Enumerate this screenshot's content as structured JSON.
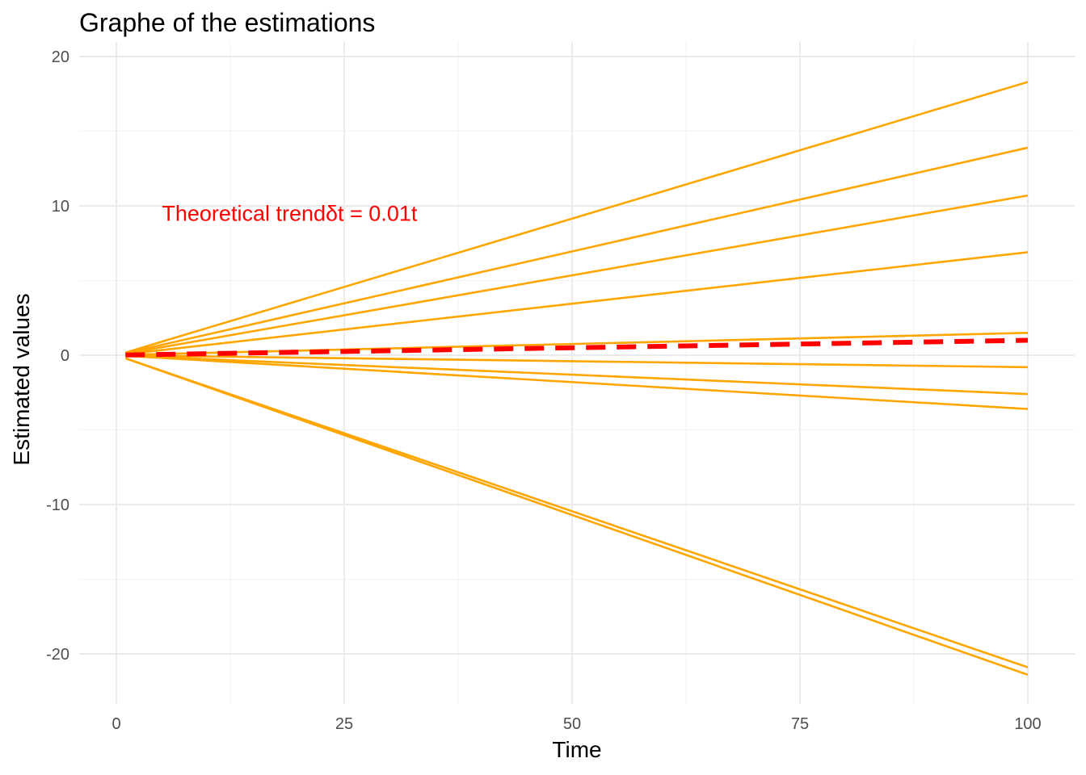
{
  "chart_data": {
    "type": "line",
    "title": "Graphe of the estimations",
    "xlabel": "Time",
    "ylabel": "Estimated values",
    "xlim": [
      0,
      100
    ],
    "ylim": [
      -20,
      20
    ],
    "xticks": [
      0,
      25,
      50,
      75,
      100
    ],
    "yticks": [
      -20,
      -10,
      0,
      10,
      20
    ],
    "grid": true,
    "series": [
      {
        "color": "#FFA500",
        "x": [
          1,
          100
        ],
        "values": [
          0.18,
          18.3
        ]
      },
      {
        "color": "#FFA500",
        "x": [
          1,
          100
        ],
        "values": [
          0.14,
          13.9
        ]
      },
      {
        "color": "#FFA500",
        "x": [
          1,
          100
        ],
        "values": [
          0.11,
          10.7
        ]
      },
      {
        "color": "#FFA500",
        "x": [
          1,
          100
        ],
        "values": [
          0.07,
          6.9
        ]
      },
      {
        "color": "#FFA500",
        "x": [
          1,
          100
        ],
        "values": [
          0.02,
          1.5
        ]
      },
      {
        "color": "#FFA500",
        "x": [
          1,
          100
        ],
        "values": [
          -0.01,
          -0.8
        ]
      },
      {
        "color": "#FFA500",
        "x": [
          1,
          100
        ],
        "values": [
          -0.03,
          -2.6
        ]
      },
      {
        "color": "#FFA500",
        "x": [
          1,
          100
        ],
        "values": [
          -0.04,
          -3.6
        ]
      },
      {
        "color": "#FFA500",
        "x": [
          1,
          100
        ],
        "values": [
          -0.21,
          -20.9
        ]
      },
      {
        "color": "#FFA500",
        "x": [
          1,
          100
        ],
        "values": [
          -0.21,
          -21.4
        ]
      },
      {
        "color": "#FF0000",
        "dashed": true,
        "x": [
          1,
          100
        ],
        "values": [
          0.01,
          1.0
        ]
      }
    ],
    "annotations": [
      {
        "text": "Theoretical trendδt = 0.01t",
        "x": 5,
        "y": 9,
        "color": "#FF0000"
      }
    ]
  }
}
